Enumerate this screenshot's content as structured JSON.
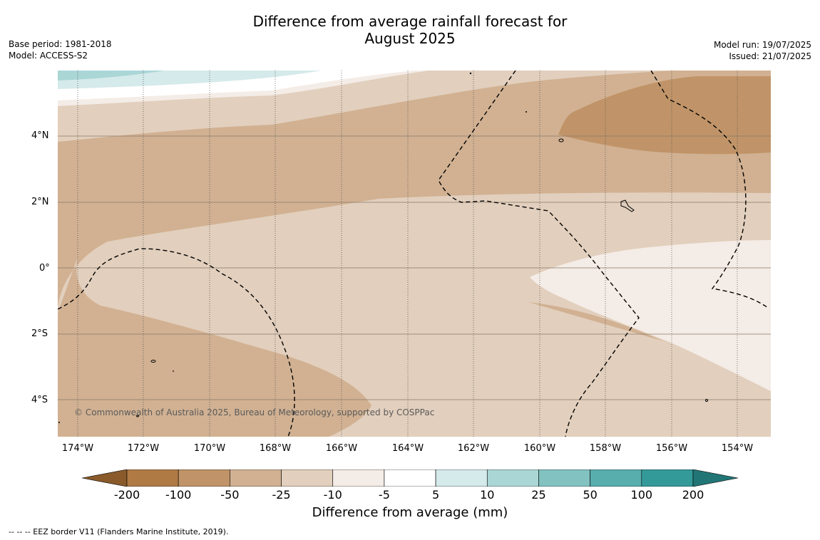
{
  "title_line1": "Difference from average rainfall forecast for",
  "title_line2": "August 2025",
  "meta": {
    "base_period": "Base period: 1981-2018",
    "model": "Model: ACCESS-S2",
    "model_run": "Model run: 19/07/2025",
    "issued": "Issued: 21/07/2025"
  },
  "map": {
    "lat_labels": [
      "4°N",
      "2°N",
      "0°",
      "2°S",
      "4°S"
    ],
    "lon_labels": [
      "174°W",
      "172°W",
      "170°W",
      "168°W",
      "166°W",
      "164°W",
      "162°W",
      "160°W",
      "158°W",
      "156°W",
      "154°W"
    ],
    "copyright": "© Commonwealth of Australia 2025, Bureau of Meteorology, supported by COSPPac"
  },
  "legend": {
    "title": "Difference from average (mm)",
    "ticks": [
      "-200",
      "-100",
      "-50",
      "-25",
      "-10",
      "-5",
      "5",
      "10",
      "25",
      "50",
      "100",
      "200"
    ],
    "colors": [
      "#8a5a2b",
      "#b07a45",
      "#c09468",
      "#d1b192",
      "#e2cfbd",
      "#f4ece6",
      "#ffffff",
      "#d5eaea",
      "#abd6d6",
      "#82c2c1",
      "#58adad",
      "#349a99",
      "#227575"
    ]
  },
  "footer": "--  --  -- EEZ border V11 (Flanders Marine Institute, 2019)."
}
